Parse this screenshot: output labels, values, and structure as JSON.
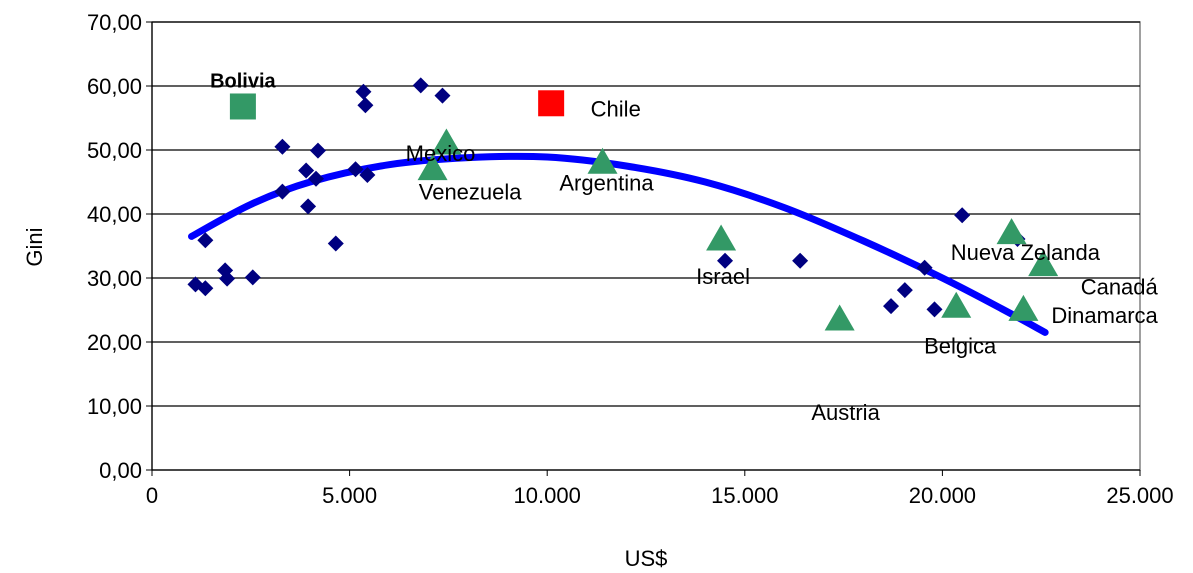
{
  "chart_data": {
    "type": "scatter",
    "xlabel": "US$",
    "ylabel": "Gini",
    "xlim": [
      0,
      25000
    ],
    "ylim": [
      0,
      70
    ],
    "x_ticks": [
      {
        "value": 0,
        "label": "0"
      },
      {
        "value": 5000,
        "label": "5.000"
      },
      {
        "value": 10000,
        "label": "10.000"
      },
      {
        "value": 15000,
        "label": "15.000"
      },
      {
        "value": 20000,
        "label": "20.000"
      },
      {
        "value": 25000,
        "label": "25.000"
      }
    ],
    "y_ticks": [
      {
        "value": 0,
        "label": "0,00"
      },
      {
        "value": 10,
        "label": "10,00"
      },
      {
        "value": 20,
        "label": "20,00"
      },
      {
        "value": 30,
        "label": "30,00"
      },
      {
        "value": 40,
        "label": "40,00"
      },
      {
        "value": 50,
        "label": "50,00"
      },
      {
        "value": 60,
        "label": "60,00"
      },
      {
        "value": 70,
        "label": "70,00"
      }
    ],
    "grid": "horizontal",
    "colors": {
      "diamond": "#000080",
      "triangle": "#339966",
      "bolivia": "#339966",
      "chile": "#ff0000",
      "trend": "#0000ff",
      "plot_border": "#808080",
      "gridline": "#000000"
    },
    "series": [
      {
        "marker": "diamond",
        "points": [
          {
            "x": 1100,
            "y": 29.0
          },
          {
            "x": 1350,
            "y": 28.4
          },
          {
            "x": 1350,
            "y": 35.9
          },
          {
            "x": 1850,
            "y": 31.2
          },
          {
            "x": 1900,
            "y": 29.9
          },
          {
            "x": 2550,
            "y": 30.1
          },
          {
            "x": 3300,
            "y": 50.5
          },
          {
            "x": 3300,
            "y": 43.5
          },
          {
            "x": 3900,
            "y": 46.8
          },
          {
            "x": 3950,
            "y": 41.2
          },
          {
            "x": 4150,
            "y": 45.5
          },
          {
            "x": 4200,
            "y": 49.9
          },
          {
            "x": 4650,
            "y": 35.4
          },
          {
            "x": 5150,
            "y": 47.0
          },
          {
            "x": 5350,
            "y": 59.1
          },
          {
            "x": 5400,
            "y": 57.0
          },
          {
            "x": 5450,
            "y": 46.1
          },
          {
            "x": 6800,
            "y": 60.1
          },
          {
            "x": 7350,
            "y": 58.5
          },
          {
            "x": 14500,
            "y": 32.7
          },
          {
            "x": 16400,
            "y": 32.7
          },
          {
            "x": 18700,
            "y": 25.6
          },
          {
            "x": 19050,
            "y": 28.1
          },
          {
            "x": 19550,
            "y": 31.6
          },
          {
            "x": 19800,
            "y": 25.1
          },
          {
            "x": 20500,
            "y": 39.8
          },
          {
            "x": 21900,
            "y": 36.1
          }
        ]
      },
      {
        "marker": "triangle",
        "points": [
          {
            "x": 7100,
            "y": 47.0
          },
          {
            "x": 7450,
            "y": 51.0
          },
          {
            "x": 11400,
            "y": 48.0
          },
          {
            "x": 14400,
            "y": 36.0
          },
          {
            "x": 17400,
            "y": 23.5
          },
          {
            "x": 20350,
            "y": 25.5
          },
          {
            "x": 21750,
            "y": 37.0
          },
          {
            "x": 22050,
            "y": 25.0
          },
          {
            "x": 22550,
            "y": 32.0
          }
        ]
      },
      {
        "marker": "square",
        "points": [
          {
            "x": 2300,
            "y": 56.8,
            "color": "bolivia"
          },
          {
            "x": 10100,
            "y": 57.3,
            "color": "chile"
          }
        ]
      }
    ],
    "trendline": {
      "type": "polynomial",
      "points": [
        {
          "x": 1000,
          "y": 36.5
        },
        {
          "x": 2500,
          "y": 41.5
        },
        {
          "x": 4000,
          "y": 45.0
        },
        {
          "x": 6000,
          "y": 47.7
        },
        {
          "x": 8000,
          "y": 48.8
        },
        {
          "x": 10000,
          "y": 48.9
        },
        {
          "x": 12000,
          "y": 47.5
        },
        {
          "x": 14000,
          "y": 45.0
        },
        {
          "x": 16000,
          "y": 41.0
        },
        {
          "x": 18000,
          "y": 35.8
        },
        {
          "x": 20000,
          "y": 30.0
        },
        {
          "x": 21500,
          "y": 25.2
        },
        {
          "x": 22600,
          "y": 21.5
        }
      ]
    },
    "annotations": [
      {
        "text": "Bolivia",
        "x": 2300,
        "y": 59.8,
        "anchor": "middle",
        "style": "bold"
      },
      {
        "text": "Chile",
        "x": 11100,
        "y": 55.2,
        "anchor": "start",
        "style": "normal"
      },
      {
        "text": "Mexico",
        "x": 7300,
        "y": 48.3,
        "anchor": "middle",
        "style": "normal"
      },
      {
        "text": "Venezuela",
        "x": 8050,
        "y": 42.3,
        "anchor": "middle",
        "style": "normal"
      },
      {
        "text": "Argentina",
        "x": 11500,
        "y": 43.7,
        "anchor": "middle",
        "style": "normal"
      },
      {
        "text": "Israel",
        "x": 14450,
        "y": 29.1,
        "anchor": "middle",
        "style": "normal"
      },
      {
        "text": "Nueva Zelanda",
        "x": 22100,
        "y": 32.8,
        "anchor": "middle",
        "style": "normal"
      },
      {
        "text": "Canadá",
        "x": 25450,
        "y": 27.4,
        "anchor": "end",
        "style": "normal"
      },
      {
        "text": "Dinamarca",
        "x": 25450,
        "y": 23.0,
        "anchor": "end",
        "style": "normal"
      },
      {
        "text": "Belgica",
        "x": 20450,
        "y": 18.2,
        "anchor": "middle",
        "style": "normal"
      },
      {
        "text": "Austria",
        "x": 17550,
        "y": 7.8,
        "anchor": "middle",
        "style": "normal"
      }
    ]
  }
}
